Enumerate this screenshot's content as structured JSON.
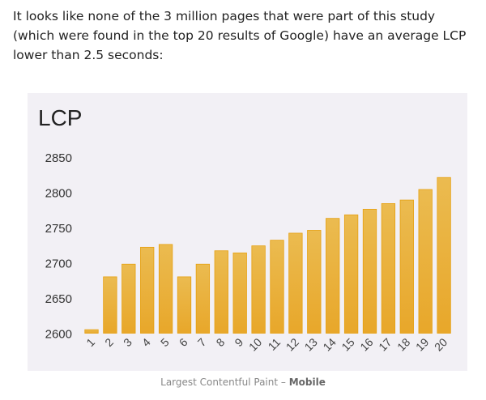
{
  "intro_text": "It looks like none of the 3 million pages that were part of this study (which were found in the top 20 results of Google) have an average LCP lower than 2.5 seconds:",
  "caption": {
    "prefix": "Largest Contentful Paint – ",
    "bold": "Mobile"
  },
  "chart_data": {
    "type": "bar",
    "title": "LCP",
    "xlabel": "",
    "ylabel": "",
    "categories": [
      "1",
      "2",
      "3",
      "4",
      "5",
      "6",
      "7",
      "8",
      "9",
      "10",
      "11",
      "12",
      "13",
      "14",
      "15",
      "16",
      "17",
      "18",
      "19",
      "20"
    ],
    "values": [
      2605,
      2680,
      2698,
      2722,
      2726,
      2680,
      2698,
      2717,
      2714,
      2724,
      2732,
      2742,
      2746,
      2763,
      2768,
      2776,
      2784,
      2789,
      2804,
      2821
    ],
    "ylim": [
      2600,
      2850
    ],
    "yticks": [
      2600,
      2650,
      2700,
      2750,
      2800,
      2850
    ],
    "grid": false,
    "legend": "none",
    "colors": {
      "bar": "#e8a72a",
      "bar_top": "#ebbb50",
      "bar_edge": "#e6a010",
      "background": "#f2f0f5"
    }
  }
}
